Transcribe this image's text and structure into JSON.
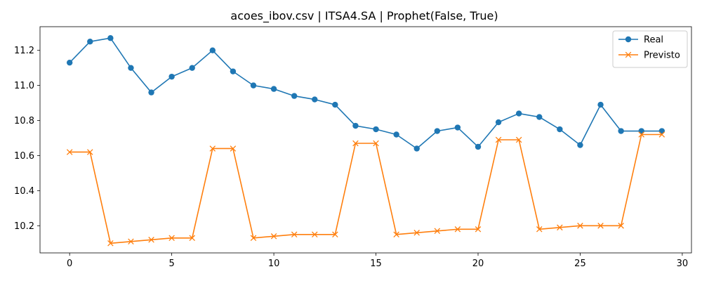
{
  "chart_data": {
    "type": "line",
    "title": "acoes_ibov.csv | ITSA4.SA | Prophet(False, True)",
    "xlabel": "",
    "ylabel": "",
    "xlim": [
      -1.45,
      30.45
    ],
    "ylim": [
      10.045,
      11.335
    ],
    "xticks": [
      0,
      5,
      10,
      15,
      20,
      25,
      30
    ],
    "yticks": [
      10.2,
      10.4,
      10.6,
      10.8,
      11.0,
      11.2
    ],
    "ytick_labels": [
      "10.2",
      "10.4",
      "10.6",
      "10.8",
      "11.0",
      "11.2"
    ],
    "grid": false,
    "legend_position": "top-right",
    "x": [
      0,
      1,
      2,
      3,
      4,
      5,
      6,
      7,
      8,
      9,
      10,
      11,
      12,
      13,
      14,
      15,
      16,
      17,
      18,
      19,
      20,
      21,
      22,
      23,
      24,
      25,
      26,
      27,
      28,
      29
    ],
    "series": [
      {
        "name": "Real",
        "color": "#1f77b4",
        "marker": "circle",
        "values": [
          11.13,
          11.25,
          11.27,
          11.1,
          10.96,
          11.05,
          11.1,
          11.2,
          11.08,
          11.0,
          10.98,
          10.94,
          10.92,
          10.89,
          10.77,
          10.75,
          10.72,
          10.64,
          10.74,
          10.76,
          10.65,
          10.79,
          10.84,
          10.82,
          10.75,
          10.66,
          10.89,
          10.74,
          10.74,
          10.74
        ]
      },
      {
        "name": "Previsto",
        "color": "#ff7f0e",
        "marker": "x",
        "values": [
          10.62,
          10.62,
          10.1,
          10.11,
          10.12,
          10.13,
          10.13,
          10.64,
          10.64,
          10.13,
          10.14,
          10.15,
          10.15,
          10.15,
          10.67,
          10.67,
          10.15,
          10.16,
          10.17,
          10.18,
          10.18,
          10.69,
          10.69,
          10.18,
          10.19,
          10.2,
          10.2,
          10.2,
          10.72,
          10.72
        ]
      }
    ]
  }
}
